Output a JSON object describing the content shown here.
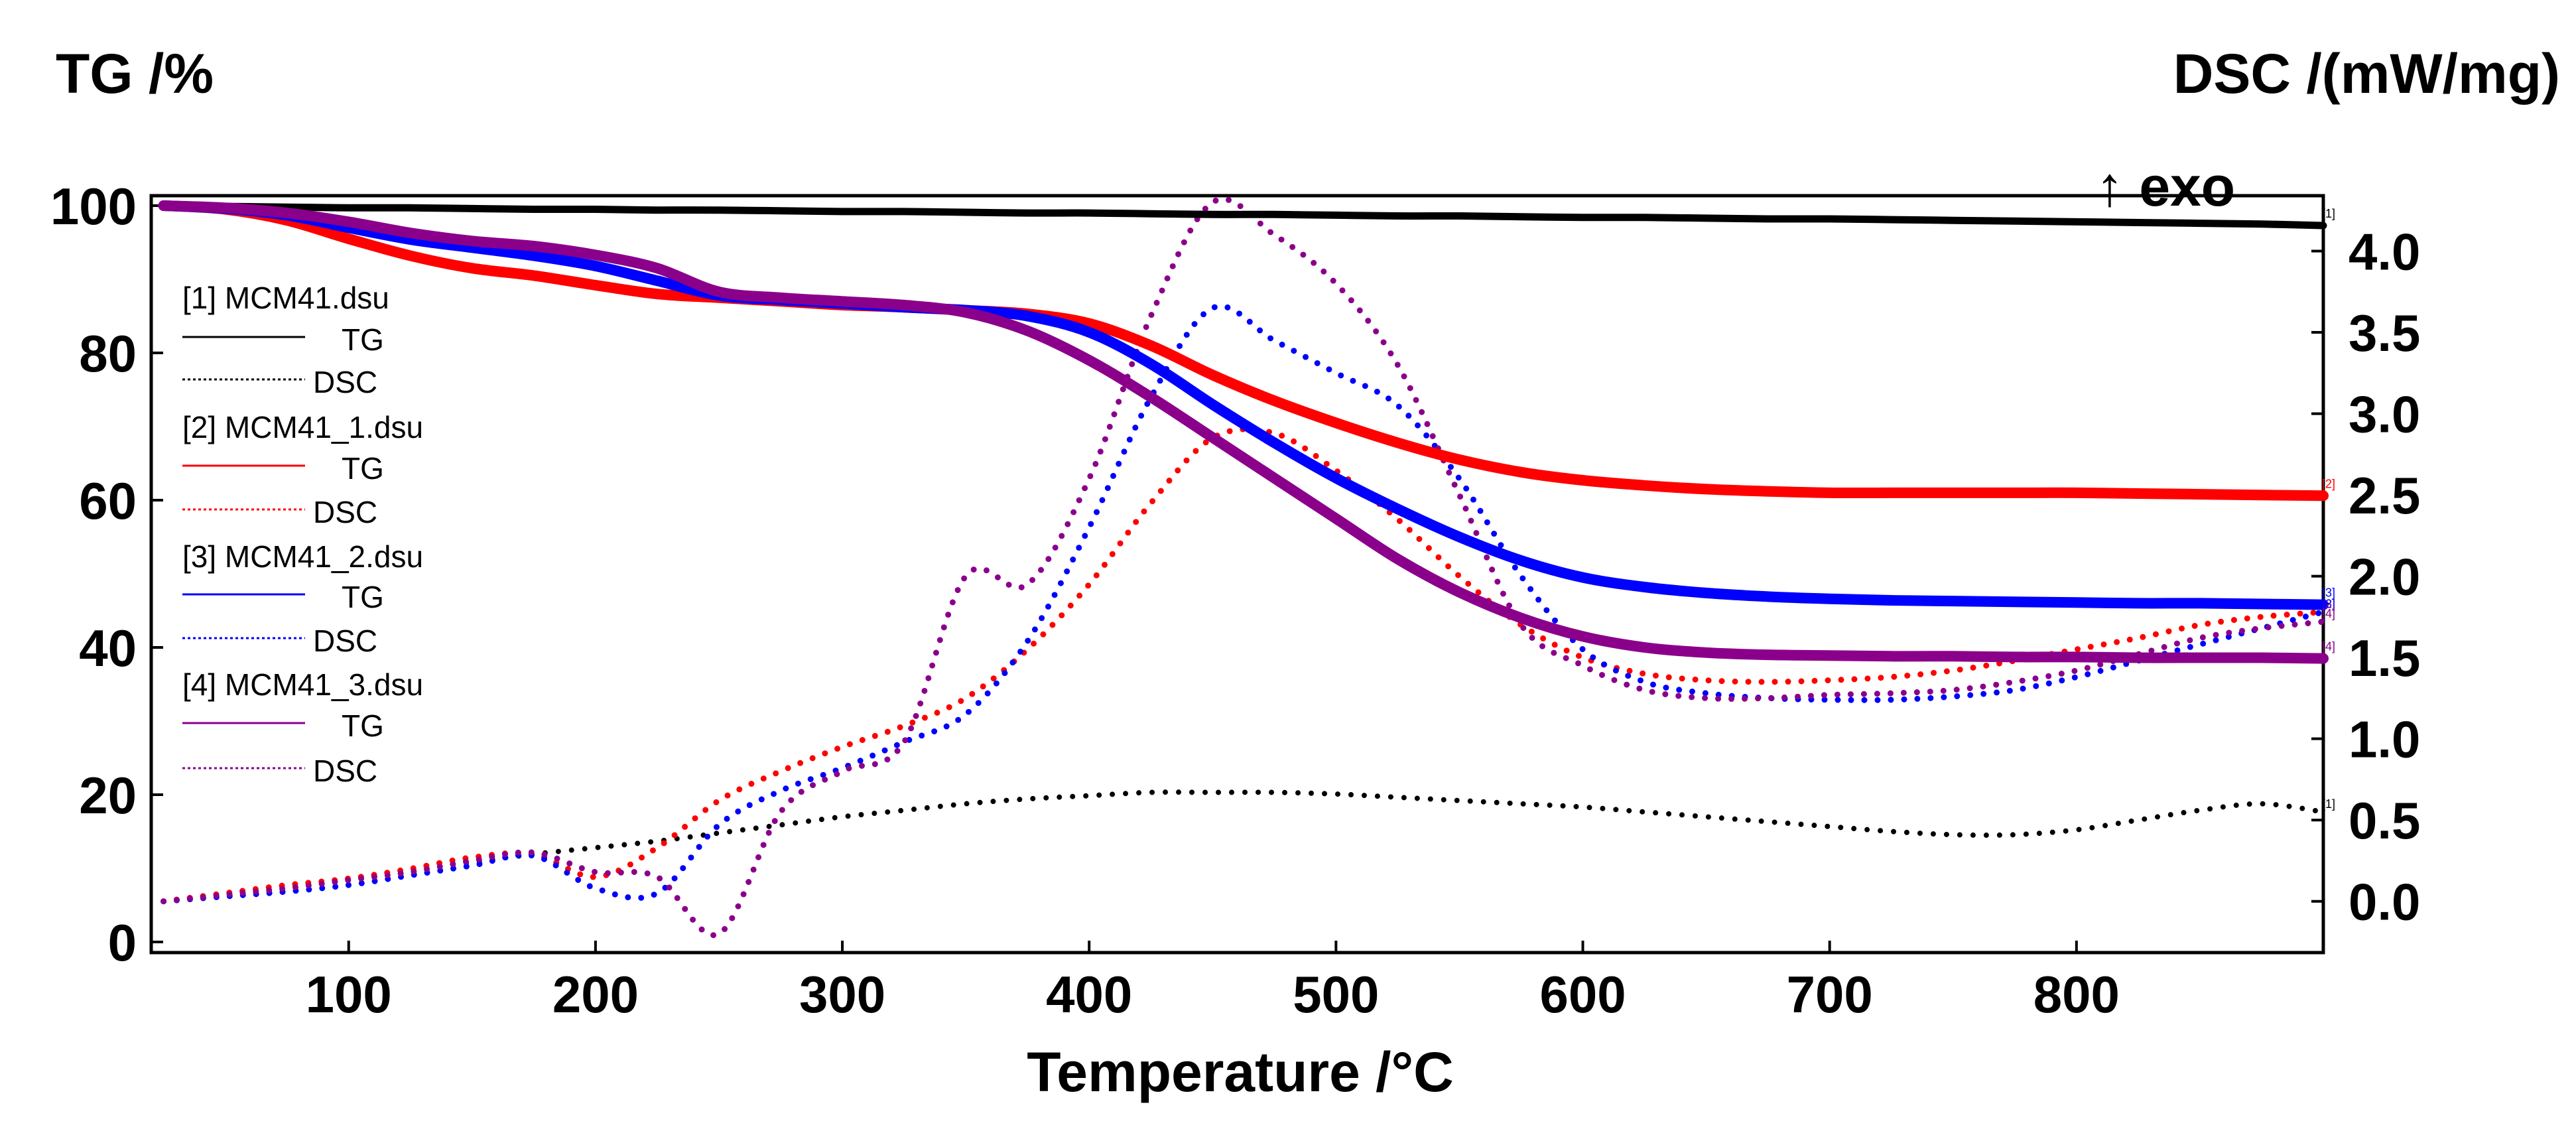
{
  "chart_data": {
    "type": "line",
    "x": [
      25,
      50,
      75,
      100,
      125,
      150,
      175,
      200,
      225,
      250,
      275,
      300,
      325,
      350,
      375,
      400,
      425,
      450,
      475,
      500,
      525,
      550,
      575,
      600,
      625,
      650,
      675,
      700,
      725,
      750,
      775,
      800,
      825,
      850,
      875,
      900
    ],
    "xlabel": "Temperature /°C",
    "xlim": [
      20,
      900
    ],
    "xticks": [
      100,
      200,
      300,
      400,
      500,
      600,
      700,
      800
    ],
    "ylabel_left": "TG /%",
    "ylim_left": [
      0,
      100
    ],
    "yticks_left": [
      0,
      20,
      40,
      60,
      80,
      100
    ],
    "ylabel_right": "DSC /(mW/mg)",
    "ylim_right": [
      -0.25,
      4.3
    ],
    "yticks_right": [
      "0.0",
      "0.5",
      "1.0",
      "1.5",
      "2.0",
      "2.5",
      "3.0",
      "3.5",
      "4.0"
    ],
    "exo_annotation": "↑ exo",
    "files": [
      {
        "label": "[1] MCM41.dsu",
        "tag": "[1]",
        "color": "#000000",
        "tg_label": "TG",
        "dsc_label": "DSC",
        "tg": [
          100,
          99.9,
          99.8,
          99.7,
          99.7,
          99.6,
          99.5,
          99.5,
          99.4,
          99.4,
          99.3,
          99.2,
          99.2,
          99.1,
          99.0,
          99.0,
          98.9,
          98.8,
          98.8,
          98.7,
          98.6,
          98.6,
          98.5,
          98.4,
          98.4,
          98.3,
          98.2,
          98.2,
          98.1,
          98.0,
          97.9,
          97.8,
          97.7,
          97.6,
          97.5,
          97.3
        ],
        "dsc": [
          0.0,
          0.04,
          0.09,
          0.14,
          0.19,
          0.24,
          0.29,
          0.33,
          0.37,
          0.42,
          0.47,
          0.52,
          0.56,
          0.6,
          0.63,
          0.65,
          0.67,
          0.67,
          0.67,
          0.66,
          0.64,
          0.62,
          0.6,
          0.58,
          0.55,
          0.52,
          0.49,
          0.46,
          0.43,
          0.41,
          0.41,
          0.44,
          0.5,
          0.56,
          0.6,
          0.55
        ]
      },
      {
        "label": "[2] MCM41_1.dsu",
        "tag": "[2]",
        "color": "#ff0000",
        "tg_label": "TG",
        "dsc_label": "DSC",
        "tg": [
          100,
          99.5,
          98.0,
          95.5,
          93.2,
          91.5,
          90.5,
          89.2,
          88.0,
          87.5,
          87.0,
          86.5,
          86.2,
          85.8,
          85.3,
          84.0,
          81.0,
          77.0,
          73.5,
          70.5,
          67.8,
          65.5,
          63.8,
          62.7,
          62.0,
          61.5,
          61.2,
          61.0,
          61.0,
          61.0,
          61.0,
          61.0,
          60.9,
          60.8,
          60.7,
          60.6
        ],
        "dsc": [
          0.0,
          0.05,
          0.1,
          0.14,
          0.2,
          0.27,
          0.29,
          0.15,
          0.33,
          0.62,
          0.8,
          0.95,
          1.08,
          1.25,
          1.55,
          1.95,
          2.45,
          2.85,
          2.88,
          2.65,
          2.35,
          2.0,
          1.7,
          1.5,
          1.4,
          1.36,
          1.35,
          1.36,
          1.38,
          1.42,
          1.48,
          1.55,
          1.62,
          1.7,
          1.75,
          1.78
        ]
      },
      {
        "label": "[3] MCM41_2.dsu",
        "tag": "[3]",
        "color": "#0000ff",
        "tg_label": "TG",
        "dsc_label": "DSC",
        "tg": [
          100,
          99.6,
          98.7,
          97.0,
          95.4,
          94.3,
          93.2,
          91.8,
          89.8,
          87.8,
          87.2,
          86.7,
          86.2,
          85.8,
          85.0,
          82.8,
          78.5,
          73.0,
          67.8,
          63.0,
          58.8,
          55.0,
          51.8,
          49.5,
          48.2,
          47.4,
          46.9,
          46.6,
          46.4,
          46.3,
          46.2,
          46.1,
          46.0,
          46.0,
          45.9,
          45.8
        ],
        "dsc": [
          0.0,
          0.03,
          0.06,
          0.1,
          0.16,
          0.22,
          0.28,
          0.08,
          0.05,
          0.47,
          0.68,
          0.82,
          0.98,
          1.15,
          1.6,
          2.3,
          3.1,
          3.65,
          3.45,
          3.25,
          3.05,
          2.6,
          2.0,
          1.55,
          1.35,
          1.28,
          1.25,
          1.24,
          1.24,
          1.26,
          1.3,
          1.38,
          1.48,
          1.58,
          1.68,
          1.78
        ]
      },
      {
        "label": "[4] MCM41_3.dsu",
        "tag": "[4]",
        "color": "#8b008b",
        "tg_label": "TG",
        "dsc_label": "DSC",
        "tg": [
          100,
          99.7,
          99.0,
          97.8,
          96.3,
          95.2,
          94.5,
          93.3,
          91.5,
          88.3,
          87.5,
          87.0,
          86.5,
          85.5,
          83.0,
          79.0,
          74.0,
          68.5,
          63.0,
          57.5,
          52.0,
          47.5,
          44.0,
          41.5,
          40.0,
          39.3,
          39.0,
          38.9,
          38.8,
          38.8,
          38.7,
          38.7,
          38.6,
          38.6,
          38.6,
          38.5
        ],
        "dsc": [
          0.0,
          0.04,
          0.08,
          0.13,
          0.18,
          0.25,
          0.3,
          0.18,
          0.15,
          -0.2,
          0.55,
          0.8,
          0.98,
          2.0,
          1.95,
          2.6,
          3.6,
          4.3,
          4.1,
          3.8,
          3.3,
          2.5,
          1.7,
          1.45,
          1.3,
          1.25,
          1.25,
          1.27,
          1.28,
          1.3,
          1.35,
          1.42,
          1.52,
          1.62,
          1.68,
          1.72
        ]
      }
    ]
  }
}
